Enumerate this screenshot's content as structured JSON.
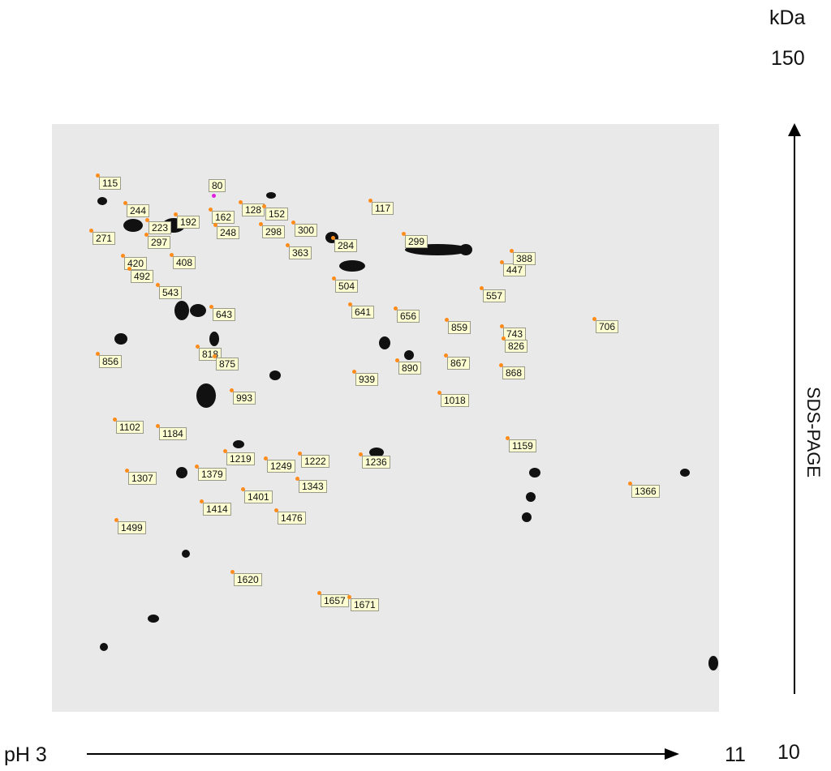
{
  "axes": {
    "mw_unit": "kDa",
    "mw_top": "150",
    "mw_axis_label": "SDS-PAGE",
    "ph_start": "pH 3",
    "ph_end": "11",
    "extra_value": "10"
  },
  "colors": {
    "label_bg": "#fdfdd2",
    "spot_marker": "#ff8c1a",
    "selected_marker": "#e020e0",
    "outline": "#f0a060"
  },
  "spots": [
    "115",
    "80",
    "244",
    "192",
    "162",
    "128",
    "152",
    "117",
    "223",
    "271",
    "297",
    "248",
    "298",
    "300",
    "284",
    "299",
    "363",
    "408",
    "420",
    "492",
    "447",
    "388",
    "543",
    "504",
    "557",
    "643",
    "641",
    "656",
    "706",
    "859",
    "743",
    "826",
    "818",
    "856",
    "875",
    "890",
    "867",
    "868",
    "939",
    "993",
    "1018",
    "1102",
    "1184",
    "1159",
    "1219",
    "1222",
    "1249",
    "1236",
    "1307",
    "1379",
    "1366",
    "1343",
    "1401",
    "1414",
    "1476",
    "1499",
    "1620",
    "1657",
    "1671"
  ],
  "selected_spot": "80"
}
